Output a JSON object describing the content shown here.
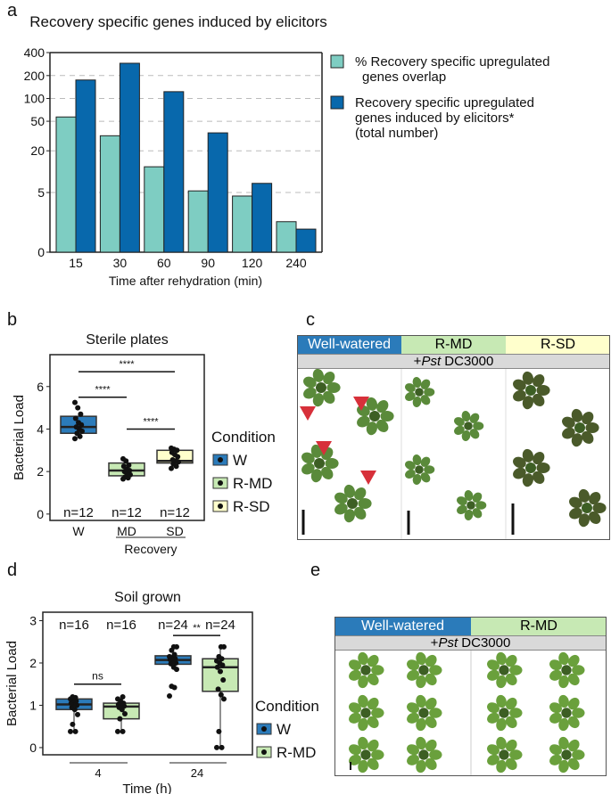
{
  "panel_labels": [
    "a",
    "b",
    "c",
    "d",
    "e"
  ],
  "colors": {
    "teal": "#7ecdc2",
    "blue": "#0868ac",
    "w": "#2b7bba",
    "rmd": "#c7e9b4",
    "rsd": "#ffffcc",
    "red": "#d7303a",
    "plant": "#4c7a2e"
  },
  "chart_data": [
    {
      "type": "bar",
      "title": "Recovery specific genes induced by elicitors",
      "xlabel": "Time after rehydration (min)",
      "ylabel": "",
      "yscale": "log10(y+1)",
      "categories": [
        "15",
        "30",
        "60",
        "90",
        "120",
        "240"
      ],
      "yticks": [
        0,
        5,
        20,
        50,
        100,
        200,
        400
      ],
      "ylim": [
        0,
        400
      ],
      "grid": "dashed horizontal",
      "legend": "right",
      "series": [
        {
          "name": "% Recovery specific upregulated genes overlap",
          "legend_lines": [
            "% Recovery specific upregulated",
            "genes overlap"
          ],
          "values": [
            57,
            32,
            12,
            5.3,
            4.4,
            1.5
          ]
        },
        {
          "name": "Recovery specific upregulated genes induced by elicitors* (total number)",
          "legend_lines": [
            "Recovery specific upregulated",
            "genes induced by elicitors*",
            "(total number)"
          ],
          "values": [
            175,
            290,
            123,
            35,
            6.9,
            1.0
          ]
        }
      ]
    },
    {
      "type": "box",
      "title": "Sterile plates",
      "ylabel": "Bacterial Load",
      "ylim": [
        -0.3,
        7.5
      ],
      "yticks": [
        0,
        2,
        4,
        6
      ],
      "categories": [
        "W",
        "MD",
        "SD"
      ],
      "group_label": "Recovery",
      "legend_title": "Condition",
      "legend": [
        "W",
        "R-MD",
        "R-SD"
      ],
      "boxes": [
        {
          "q1": 3.8,
          "median": 4.1,
          "q3": 4.6,
          "n": "n=12",
          "points": [
            3.55,
            3.65,
            3.8,
            3.9,
            4.0,
            4.1,
            4.2,
            4.3,
            4.5,
            4.7,
            5.0,
            5.25
          ]
        },
        {
          "q1": 1.8,
          "median": 2.05,
          "q3": 2.4,
          "n": "n=12",
          "points": [
            1.65,
            1.7,
            1.75,
            1.85,
            1.9,
            2.0,
            2.05,
            2.1,
            2.25,
            2.3,
            2.5,
            2.6
          ]
        },
        {
          "q1": 2.4,
          "median": 2.5,
          "q3": 3.0,
          "n": "n=12",
          "points": [
            2.15,
            2.25,
            2.35,
            2.45,
            2.5,
            2.55,
            2.7,
            2.8,
            2.9,
            3.0,
            3.05,
            3.1
          ]
        }
      ],
      "significance": [
        {
          "from": 0,
          "to": 2,
          "y": 6.7,
          "label": "****"
        },
        {
          "from": 0,
          "to": 1,
          "y": 5.5,
          "label": "****"
        },
        {
          "from": 1,
          "to": 2,
          "y": 4.0,
          "label": "****"
        }
      ]
    },
    {
      "type": "box",
      "title": "Soil grown",
      "ylabel": "Bacterial Load",
      "xlabel": "Time (h)",
      "ylim": [
        -0.15,
        3.2
      ],
      "yticks": [
        0,
        1,
        2,
        3
      ],
      "time_labels": [
        "4",
        "24"
      ],
      "legend_title": "Condition",
      "legend": [
        "W",
        "R-MD"
      ],
      "boxes": [
        {
          "cond": 0,
          "min": 0.38,
          "q1": 0.9,
          "median": 1.02,
          "q3": 1.15,
          "max": 1.2,
          "n": "n=16",
          "points": [
            0.38,
            0.38,
            0.55,
            0.78,
            0.9,
            0.95,
            1.0,
            1.02,
            1.05,
            1.1,
            1.12,
            1.15,
            1.18,
            1.2
          ]
        },
        {
          "cond": 1,
          "min": 0.38,
          "q1": 0.68,
          "median": 0.97,
          "q3": 1.05,
          "max": 1.2,
          "n": "n=16",
          "points": [
            0.38,
            0.38,
            0.68,
            0.8,
            0.9,
            0.95,
            0.98,
            1.0,
            1.02,
            1.05,
            1.1,
            1.15,
            1.2
          ]
        },
        {
          "cond": 0,
          "min": 1.97,
          "q1": 1.97,
          "median": 2.07,
          "q3": 2.17,
          "max": 2.38,
          "n": "n=24",
          "points": [
            1.22,
            1.42,
            1.45,
            1.85,
            1.9,
            1.98,
            2.0,
            2.05,
            2.08,
            2.1,
            2.12,
            2.15,
            2.2,
            2.3,
            2.38,
            2.38
          ]
        },
        {
          "cond": 1,
          "min": 0.0,
          "q1": 1.33,
          "median": 1.9,
          "q3": 2.1,
          "max": 2.38,
          "n": "n=24",
          "points": [
            0,
            0,
            0.38,
            1.15,
            1.25,
            1.38,
            1.6,
            1.8,
            1.9,
            1.95,
            2.0,
            2.05,
            2.1,
            2.15,
            2.38,
            2.38
          ]
        }
      ],
      "significance": [
        {
          "from": 0,
          "to": 1,
          "y": 1.5,
          "label": "ns"
        },
        {
          "from": 2,
          "to": 3,
          "y": 2.65,
          "label": "**"
        }
      ]
    }
  ],
  "panel_c": {
    "headers": [
      "Well-watered",
      "R-MD",
      "R-SD"
    ],
    "treatment_prefix": "+",
    "treatment_italic": "Pst",
    "treatment_rest": " DC3000"
  },
  "panel_e": {
    "headers": [
      "Well-watered",
      "R-MD"
    ],
    "treatment_prefix": "+",
    "treatment_italic": "Pst",
    "treatment_rest": " DC3000"
  }
}
